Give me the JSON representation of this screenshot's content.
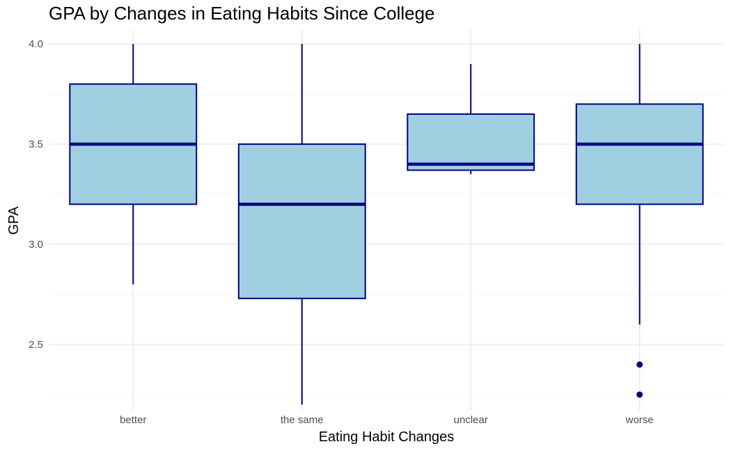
{
  "chart_data": {
    "type": "boxplot",
    "title": "GPA by Changes in Eating Habits Since College",
    "xlabel": "Eating Habit Changes",
    "ylabel": "GPA",
    "categories": [
      "better",
      "the same",
      "unclear",
      "worse"
    ],
    "ylim": [
      2.17,
      4.07
    ],
    "yticks": [
      "2.5",
      "3.0",
      "3.5",
      "4.0"
    ],
    "ytick_values": [
      2.5,
      3.0,
      3.5,
      4.0
    ],
    "grid": true,
    "legend": "none",
    "boxes": [
      {
        "category": "better",
        "whisker_low": 2.8,
        "q1": 3.2,
        "median": 3.5,
        "q3": 3.8,
        "whisker_high": 4.0,
        "outliers": []
      },
      {
        "category": "the same",
        "whisker_low": 2.2,
        "q1": 2.73,
        "median": 3.2,
        "q3": 3.5,
        "whisker_high": 4.0,
        "outliers": []
      },
      {
        "category": "unclear",
        "whisker_low": 3.35,
        "q1": 3.37,
        "median": 3.4,
        "q3": 3.65,
        "whisker_high": 3.9,
        "outliers": []
      },
      {
        "category": "worse",
        "whisker_low": 2.6,
        "q1": 3.2,
        "median": 3.5,
        "q3": 3.7,
        "whisker_high": 4.0,
        "outliers": [
          2.4,
          2.25
        ]
      }
    ],
    "colors": {
      "box_fill": "#a0cfe2",
      "box_stroke": "#000080",
      "grid_major": "#ebebeb",
      "grid_minor": "#f3f3f3"
    }
  }
}
